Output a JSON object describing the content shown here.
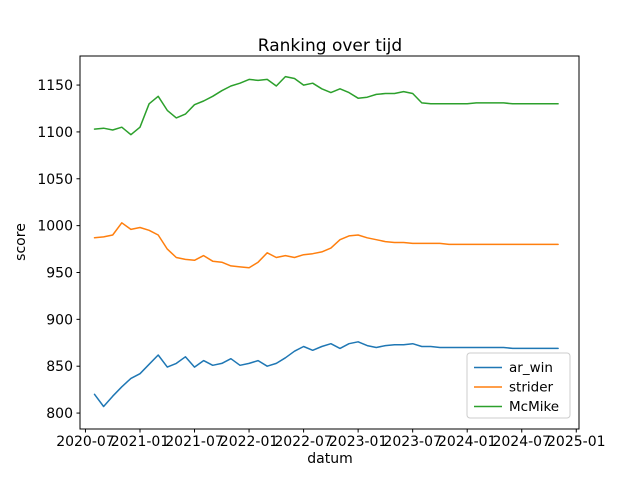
{
  "chart_data": {
    "type": "line",
    "title": "Ranking over tijd",
    "xlabel": "datum",
    "ylabel": "score",
    "legend_position": "lower right",
    "grid": false,
    "ylim": [
      783,
      1181
    ],
    "xlim_months": [
      -0.6,
      54.3
    ],
    "x_unit": "months since 2020-07",
    "y_ticks": [
      800,
      850,
      900,
      950,
      1000,
      1050,
      1100,
      1150
    ],
    "x_ticks": [
      {
        "label": "2020-07",
        "month": 0
      },
      {
        "label": "2021-01",
        "month": 6
      },
      {
        "label": "2021-07",
        "month": 12
      },
      {
        "label": "2022-01",
        "month": 18
      },
      {
        "label": "2022-07",
        "month": 24
      },
      {
        "label": "2023-01",
        "month": 30
      },
      {
        "label": "2023-07",
        "month": 36
      },
      {
        "label": "2024-01",
        "month": 42
      },
      {
        "label": "2024-07",
        "month": 48
      },
      {
        "label": "2025-01",
        "month": 54
      }
    ],
    "categories": [
      "2020-08",
      "2020-09",
      "2020-10",
      "2020-11",
      "2020-12",
      "2021-01",
      "2021-02",
      "2021-03",
      "2021-04",
      "2021-05",
      "2021-06",
      "2021-07",
      "2021-08",
      "2021-09",
      "2021-10",
      "2021-11",
      "2021-12",
      "2022-01",
      "2022-02",
      "2022-03",
      "2022-04",
      "2022-05",
      "2022-06",
      "2022-07",
      "2022-08",
      "2022-09",
      "2022-10",
      "2022-11",
      "2022-12",
      "2023-01",
      "2023-02",
      "2023-03",
      "2023-04",
      "2023-05",
      "2023-06",
      "2023-07",
      "2023-08",
      "2023-09",
      "2023-10",
      "2023-11",
      "2023-12",
      "2024-01",
      "2024-02",
      "2024-03",
      "2024-04",
      "2024-05",
      "2024-06",
      "2024-07",
      "2024-08",
      "2024-09",
      "2024-10",
      "2024-11"
    ],
    "series": [
      {
        "name": "ar_win",
        "color": "#1f77b4",
        "values": [
          820,
          807,
          818,
          828,
          837,
          842,
          852,
          862,
          849,
          853,
          860,
          849,
          856,
          851,
          853,
          858,
          851,
          853,
          856,
          850,
          853,
          859,
          866,
          871,
          867,
          871,
          874,
          869,
          874,
          876,
          872,
          870,
          872,
          873,
          873,
          874,
          871,
          871,
          870,
          870,
          870,
          870,
          870,
          870,
          870,
          870,
          869,
          869,
          869,
          869,
          869,
          869
        ]
      },
      {
        "name": "strider",
        "color": "#ff7f0e",
        "values": [
          987,
          988,
          990,
          1003,
          996,
          998,
          995,
          990,
          975,
          966,
          964,
          963,
          968,
          962,
          961,
          957,
          956,
          955,
          961,
          971,
          966,
          968,
          966,
          969,
          970,
          972,
          976,
          985,
          989,
          990,
          987,
          985,
          983,
          982,
          982,
          981,
          981,
          981,
          981,
          980,
          980,
          980,
          980,
          980,
          980,
          980,
          980,
          980,
          980,
          980,
          980,
          980
        ]
      },
      {
        "name": "McMike",
        "color": "#2ca02c",
        "values": [
          1103,
          1104,
          1102,
          1105,
          1097,
          1105,
          1130,
          1138,
          1123,
          1115,
          1119,
          1129,
          1133,
          1138,
          1144,
          1149,
          1152,
          1156,
          1155,
          1156,
          1149,
          1159,
          1157,
          1150,
          1152,
          1146,
          1142,
          1146,
          1142,
          1136,
          1137,
          1140,
          1141,
          1141,
          1143,
          1141,
          1131,
          1130,
          1130,
          1130,
          1130,
          1130,
          1131,
          1131,
          1131,
          1131,
          1130,
          1130,
          1130,
          1130,
          1130,
          1130
        ]
      }
    ]
  }
}
